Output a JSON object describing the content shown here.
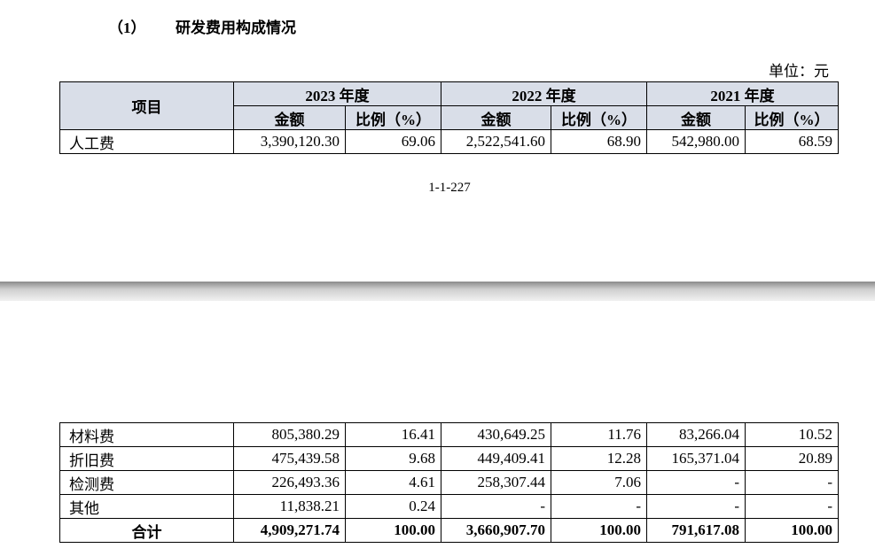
{
  "heading": {
    "number": "（1）",
    "title": "研发费用构成情况"
  },
  "unit": "单位：元",
  "table": {
    "item_header": "项目",
    "years": [
      "2023 年度",
      "2022 年度",
      "2021 年度"
    ],
    "sub_headers": [
      [
        "金额",
        "比例（%）"
      ],
      [
        "金额",
        "比例（%）"
      ],
      [
        "金额",
        "比例（%）"
      ]
    ],
    "rows": [
      [
        "人工费",
        "3,390,120.30",
        "69.06",
        "2,522,541.60",
        "68.90",
        "542,980.00",
        "68.59"
      ]
    ]
  },
  "page_number": "1-1-227",
  "continued_table": {
    "rows": [
      [
        "材料费",
        "805,380.29",
        "16.41",
        "430,649.25",
        "11.76",
        "83,266.04",
        "10.52"
      ],
      [
        "折旧费",
        "475,439.58",
        "9.68",
        "449,409.41",
        "12.28",
        "165,371.04",
        "20.89"
      ],
      [
        "检测费",
        "226,493.36",
        "4.61",
        "258,307.44",
        "7.06",
        "-",
        "-"
      ],
      [
        "其他",
        "11,838.21",
        "0.24",
        "-",
        "-",
        "-",
        "-"
      ]
    ],
    "total": [
      "合计",
      "4,909,271.74",
      "100.00",
      "3,660,907.70",
      "100.00",
      "791,617.08",
      "100.00"
    ]
  }
}
